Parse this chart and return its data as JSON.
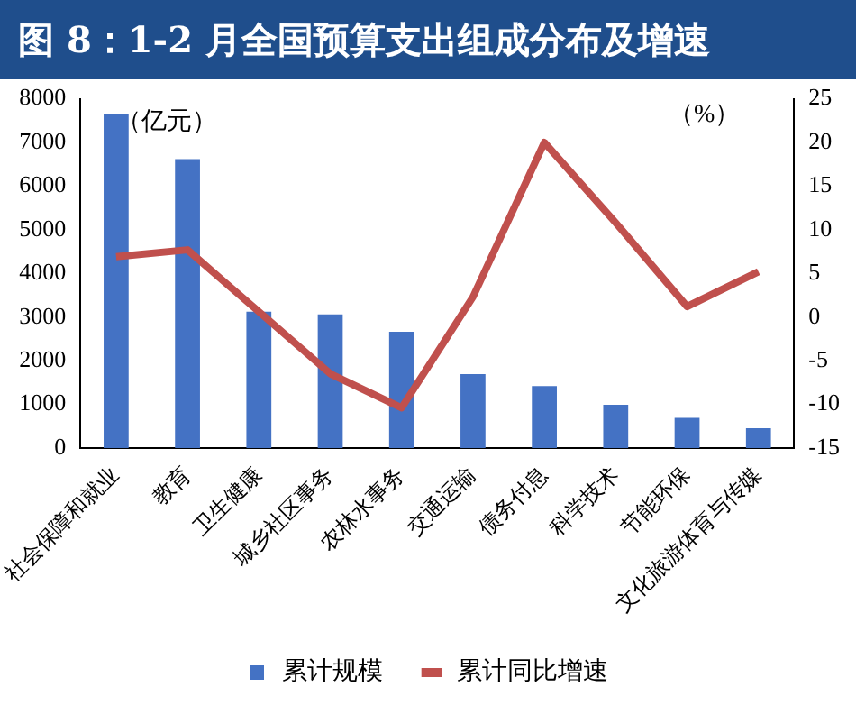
{
  "chart_data": {
    "type": "bar",
    "title": "图 8：1-2 月全国预算支出组成分布及增速",
    "categories": [
      "社会保障和就业",
      "教育",
      "卫生健康",
      "城乡社区事务",
      "农林水事务",
      "交通运输",
      "债务付息",
      "科学技术",
      "节能环保",
      "文化旅游体育与传媒"
    ],
    "series": [
      {
        "name": "累计规模",
        "color": "#4472c4",
        "values": [
          7650,
          6620,
          3120,
          3060,
          2660,
          1690,
          1420,
          990,
          690,
          450
        ]
      },
      {
        "name": "累计同比增速",
        "type": "line",
        "axis": "y2",
        "color": "#c0504d",
        "marker": "none",
        "values": [
          6.9,
          7.7,
          0.6,
          -6.5,
          -10.4,
          2.3,
          20.0,
          10.8,
          1.2,
          5.2
        ]
      }
    ],
    "ylabel": "（亿元）",
    "y2label": "（%）",
    "ylim": [
      0,
      8000
    ],
    "yticks": [
      0,
      1000,
      2000,
      3000,
      4000,
      5000,
      6000,
      7000,
      8000
    ],
    "y2lim": [
      -15,
      25
    ],
    "y2ticks": [
      -15,
      -10,
      -5,
      0,
      5,
      10,
      15,
      20,
      25
    ],
    "grid": false,
    "legend": "bottom"
  }
}
